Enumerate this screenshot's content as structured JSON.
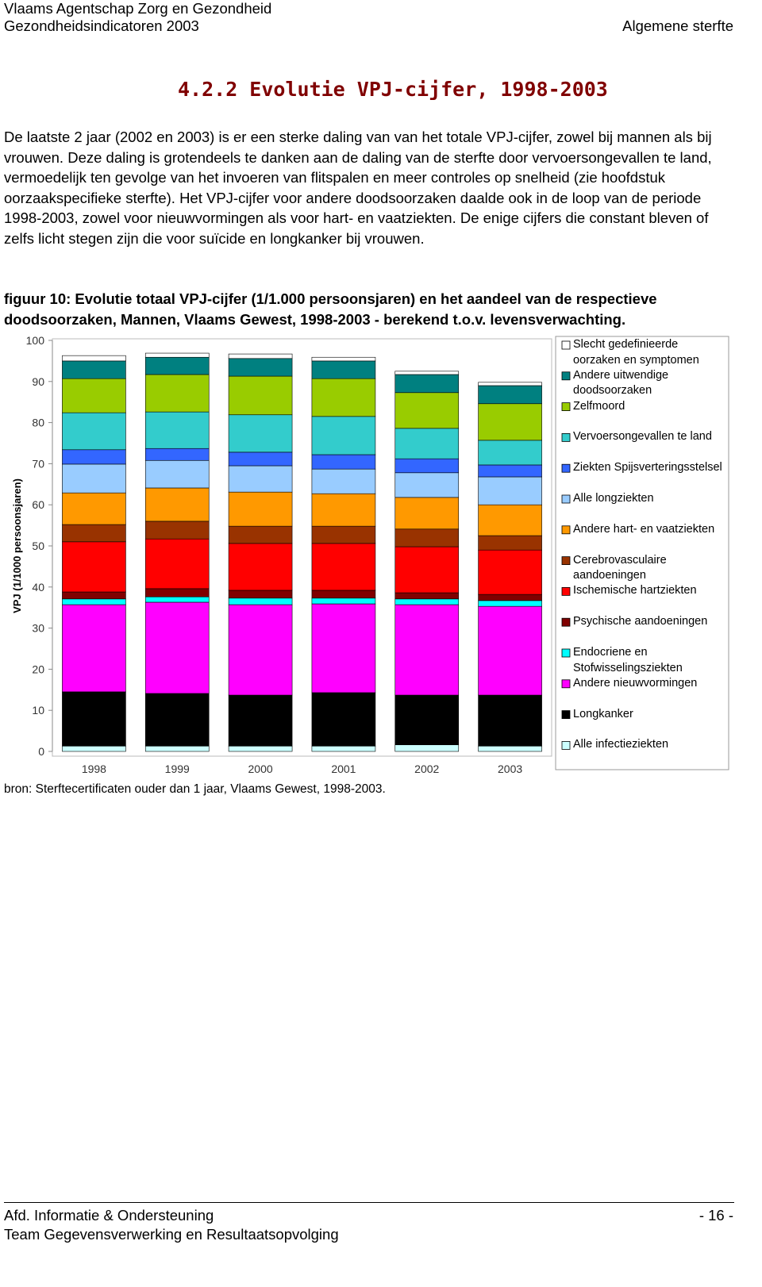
{
  "header": {
    "org": "Vlaams Agentschap Zorg en Gezondheid",
    "report": "Gezondheidsindicatoren 2003",
    "section": "Algemene sterfte"
  },
  "section_title": "4.2.2 Evolutie VPJ-cijfer, 1998-2003",
  "body_text": "De laatste 2 jaar (2002 en 2003) is er een sterke daling van van het totale VPJ-cijfer, zowel bij mannen als bij vrouwen. Deze daling is grotendeels te danken aan de daling van de sterfte door vervoersongevallen te land, vermoedelijk ten gevolge van het invoeren van flitspalen en meer controles op snelheid (zie hoofdstuk oorzaakspecifieke sterfte). Het VPJ-cijfer voor andere doodsoorzaken daalde ook in de loop van de periode 1998-2003, zowel voor nieuwvormingen als voor hart- en vaatziekten. De enige cijfers die constant bleven of zelfs licht stegen zijn die voor suïcide en longkanker bij vrouwen.",
  "figure_caption": "figuur 10: Evolutie totaal VPJ-cijfer (1/1.000 persoonsjaren) en het aandeel van de respectieve doodsoorzaken, Mannen, Vlaams Gewest, 1998-2003 - berekend t.o.v. levensverwachting.",
  "source": "bron: Sterftecertificaten ouder dan 1 jaar, Vlaams Gewest, 1998-2003.",
  "footer": {
    "dept": "Afd. Informatie & Ondersteuning",
    "team": "Team Gegevensverwerking en Resultaatsopvolging",
    "page": "- 16 -"
  },
  "chart_data": {
    "type": "stacked-bar",
    "y_label": "VPJ (1/1000 persoonsjaren)",
    "categories": [
      "1998",
      "1999",
      "2000",
      "2001",
      "2002",
      "2003"
    ],
    "ylim": [
      0,
      100
    ],
    "yticks": [
      0,
      10,
      20,
      30,
      40,
      50,
      60,
      70,
      80,
      90,
      100
    ],
    "grid": false,
    "series": [
      {
        "name": "Alle infectieziekten",
        "color": "#ccffff",
        "values": [
          1.3,
          1.3,
          1.3,
          1.3,
          1.6,
          1.3
        ]
      },
      {
        "name": "Longkanker",
        "color": "#000000",
        "values": [
          13.2,
          12.8,
          12.4,
          13.0,
          12.1,
          12.4
        ]
      },
      {
        "name": "Andere nieuwvormingen",
        "color": "#ff00ff",
        "values": [
          21.2,
          22.2,
          22.0,
          21.6,
          22.0,
          21.6
        ]
      },
      {
        "name": "Endocriene en Stofwisselingsziekten",
        "color": "#00ffff",
        "values": [
          1.4,
          1.3,
          1.6,
          1.4,
          1.4,
          1.4
        ]
      },
      {
        "name": "Psychische aandoeningen",
        "color": "#800000",
        "values": [
          1.7,
          2.0,
          1.9,
          1.9,
          1.5,
          1.5
        ]
      },
      {
        "name": "Ischemische hartziekten",
        "color": "#ff0000",
        "values": [
          12.2,
          12.1,
          11.4,
          11.4,
          11.2,
          10.8
        ]
      },
      {
        "name": "Cerebrovasculaire aandoeningen",
        "color": "#993300",
        "values": [
          4.2,
          4.3,
          4.2,
          4.2,
          4.3,
          3.5
        ]
      },
      {
        "name": "Andere hart- en vaatziekten",
        "color": "#ff9900",
        "values": [
          7.7,
          8.1,
          8.3,
          7.9,
          7.7,
          7.5
        ]
      },
      {
        "name": "Alle longziekten",
        "color": "#99ccff",
        "values": [
          7.0,
          6.7,
          6.4,
          6.0,
          6.0,
          6.8
        ]
      },
      {
        "name": "Ziekten Spijsverteringsstelsel",
        "color": "#3366ff",
        "values": [
          3.5,
          2.9,
          3.3,
          3.5,
          3.4,
          2.9
        ]
      },
      {
        "name": "Vervoersongevallen te land",
        "color": "#33cccc",
        "values": [
          9.0,
          8.9,
          9.1,
          9.3,
          7.4,
          6.0
        ]
      },
      {
        "name": "Zelfmoord",
        "color": "#99cc00",
        "values": [
          8.3,
          9.1,
          9.4,
          9.2,
          8.7,
          8.9
        ]
      },
      {
        "name": "Andere uitwendige doodsoorzaken",
        "color": "#008080",
        "values": [
          4.3,
          4.2,
          4.3,
          4.3,
          4.4,
          4.4
        ]
      },
      {
        "name": "Slecht gedefinieerde oorzaken en symptomen",
        "color": "#ffffff",
        "values": [
          1.3,
          1.0,
          1.1,
          0.9,
          0.8,
          0.8
        ]
      }
    ]
  }
}
